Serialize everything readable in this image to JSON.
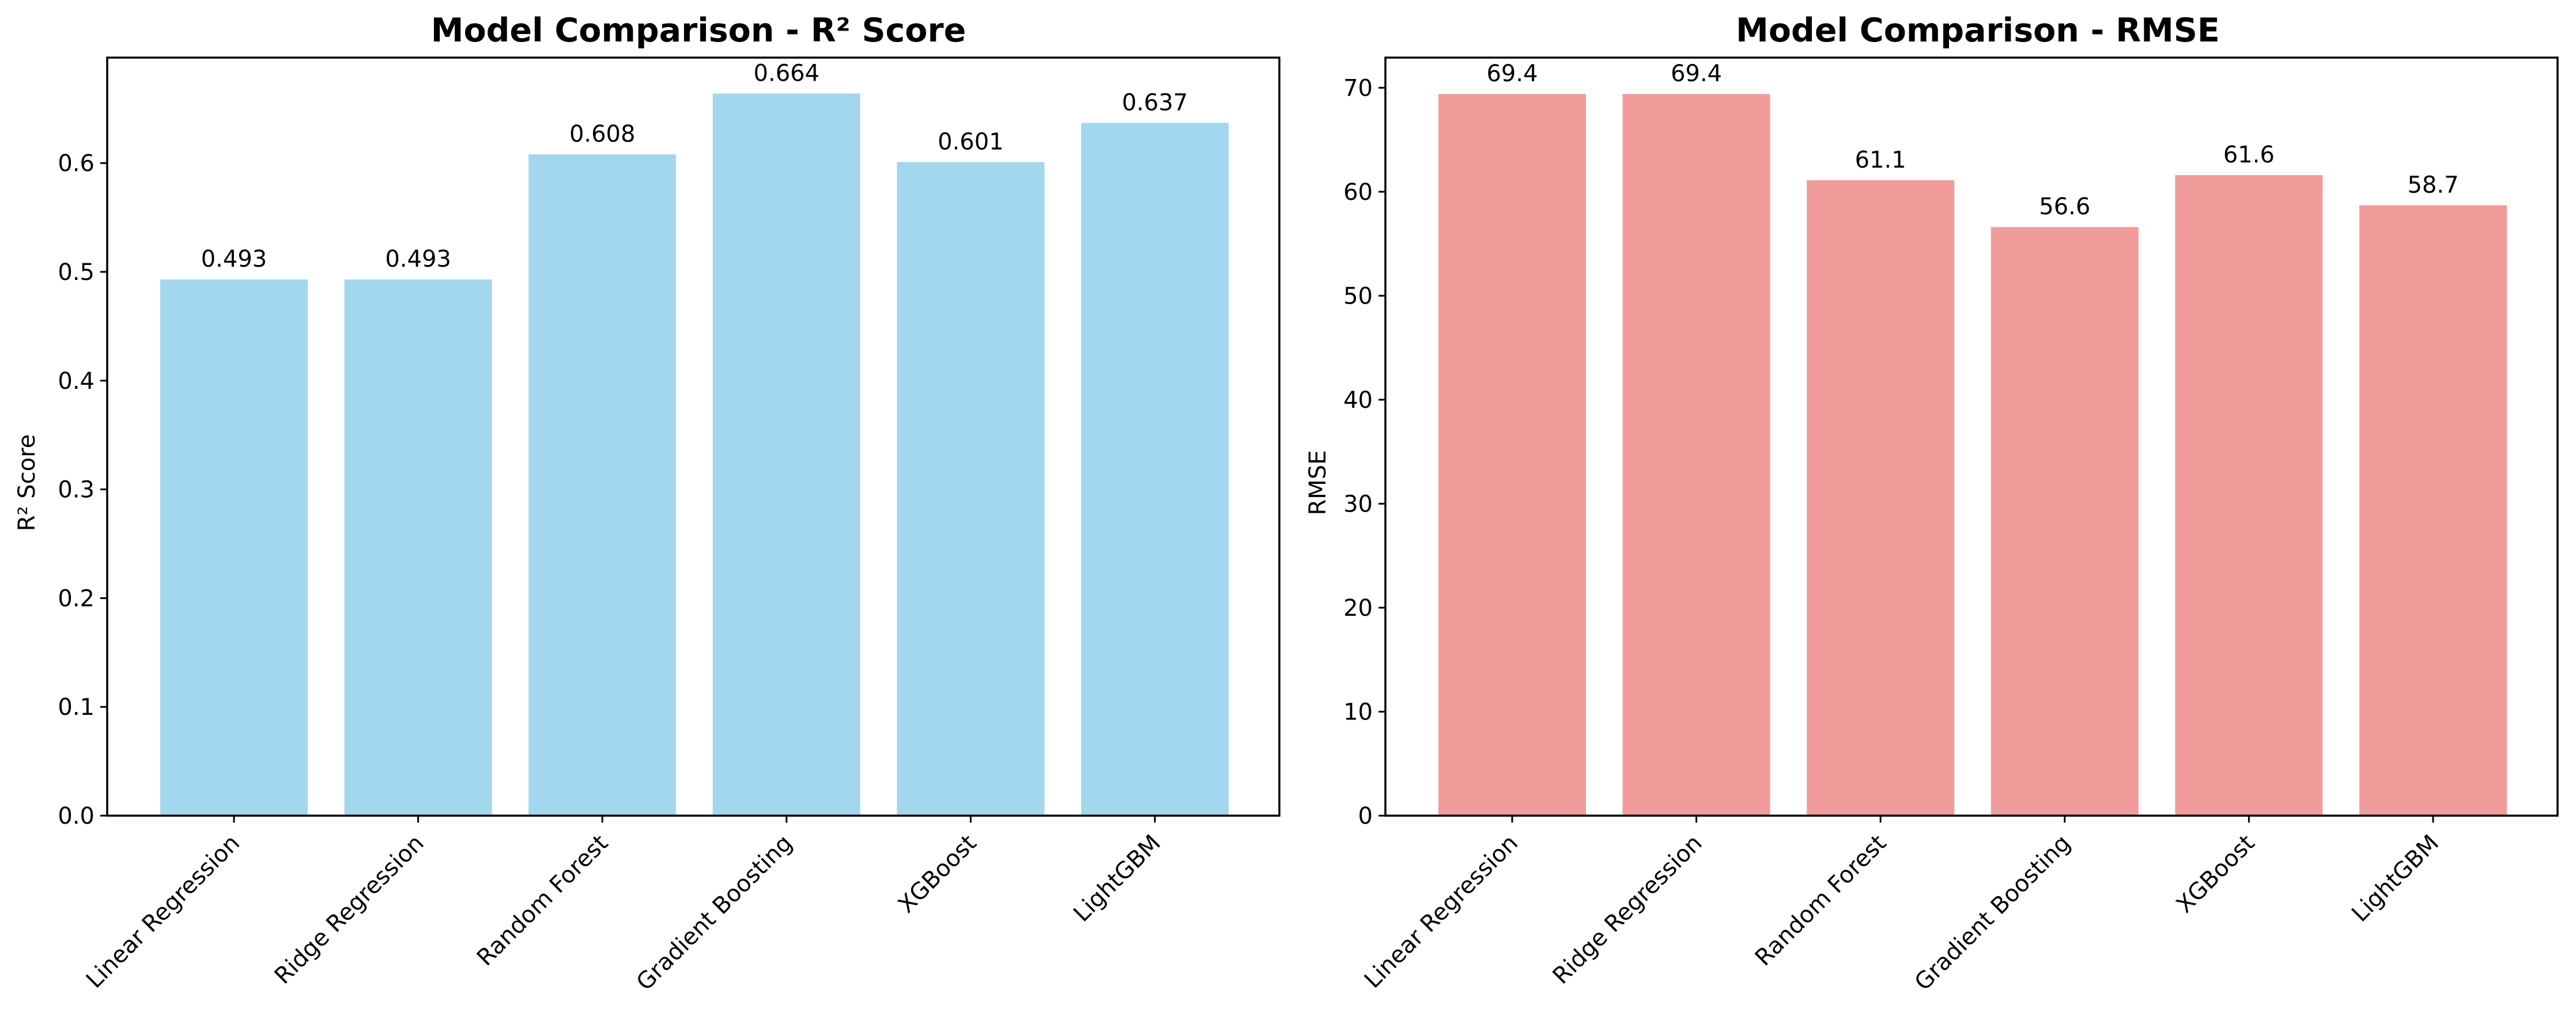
{
  "chart_data": [
    {
      "type": "bar",
      "title": "Model Comparison - R² Score",
      "xlabel": "",
      "ylabel": "R² Score",
      "categories": [
        "Linear Regression",
        "Ridge Regression",
        "Random Forest",
        "Gradient Boosting",
        "XGBoost",
        "LightGBM"
      ],
      "values": [
        0.493,
        0.493,
        0.608,
        0.664,
        0.601,
        0.637
      ],
      "data_labels": [
        "0.493",
        "0.493",
        "0.608",
        "0.664",
        "0.601",
        "0.637"
      ],
      "ylim": [
        0,
        0.697
      ],
      "yticks": [
        0.0,
        0.1,
        0.2,
        0.3,
        0.4,
        0.5,
        0.6
      ],
      "ytick_labels": [
        "0.0",
        "0.1",
        "0.2",
        "0.3",
        "0.4",
        "0.5",
        "0.6"
      ],
      "bar_color": "#a3d7ee",
      "grid": false,
      "legend": "none"
    },
    {
      "type": "bar",
      "title": "Model Comparison - RMSE",
      "xlabel": "",
      "ylabel": "RMSE",
      "categories": [
        "Linear Regression",
        "Ridge Regression",
        "Random Forest",
        "Gradient Boosting",
        "XGBoost",
        "LightGBM"
      ],
      "values": [
        69.4,
        69.4,
        61.1,
        56.6,
        61.6,
        58.7
      ],
      "data_labels": [
        "69.4",
        "69.4",
        "61.1",
        "56.6",
        "61.6",
        "58.7"
      ],
      "ylim": [
        0,
        72.9
      ],
      "yticks": [
        0,
        10,
        20,
        30,
        40,
        50,
        60,
        70
      ],
      "ytick_labels": [
        "0",
        "10",
        "20",
        "30",
        "40",
        "50",
        "60",
        "70"
      ],
      "bar_color": "#f29b9b",
      "grid": false,
      "legend": "none"
    }
  ]
}
